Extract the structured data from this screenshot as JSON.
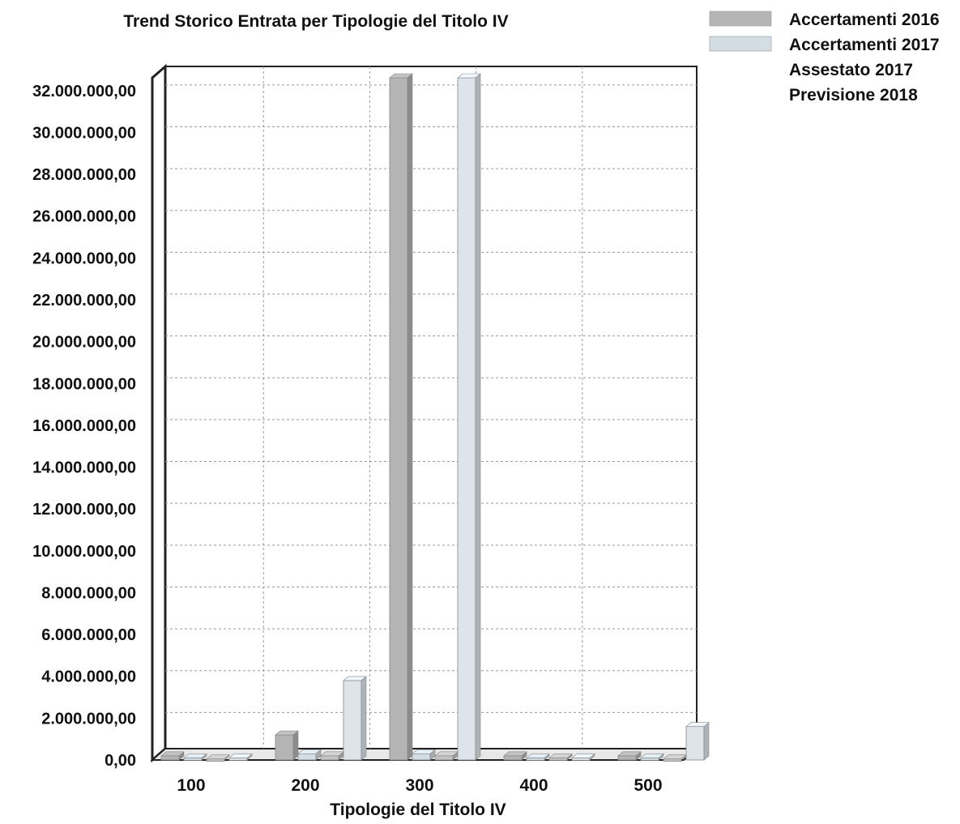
{
  "chart_data": {
    "type": "bar",
    "title": "Trend Storico Entrata per Tipologie del Titolo IV",
    "xlabel": "Tipologie del Titolo IV",
    "ylabel": "",
    "categories": [
      "100",
      "200",
      "300",
      "400",
      "500"
    ],
    "ylim": [
      0,
      33000000
    ],
    "yticks": [
      0,
      2000000,
      4000000,
      6000000,
      8000000,
      10000000,
      12000000,
      14000000,
      16000000,
      18000000,
      20000000,
      22000000,
      24000000,
      26000000,
      28000000,
      30000000,
      32000000
    ],
    "ytick_labels": [
      "0,00",
      "2.000.000,00",
      "4.000.000,00",
      "6.000.000,00",
      "8.000.000,00",
      "10.000.000,00",
      "12.000.000,00",
      "14.000.000,00",
      "16.000.000,00",
      "18.000.000,00",
      "20.000.000,00",
      "22.000.000,00",
      "24.000.000,00",
      "26.000.000,00",
      "28.000.000,00",
      "30.000.000,00",
      "32.000.000,00"
    ],
    "series": [
      {
        "name": "Accertamenti 2016",
        "color": "#b4b4b4",
        "values": [
          200000,
          1200000,
          33000000,
          200000,
          200000
        ]
      },
      {
        "name": "Accertamenti 2017",
        "color": "#d2dde4",
        "values": [
          100000,
          300000,
          300000,
          100000,
          100000
        ]
      },
      {
        "name": "Assestato 2017",
        "color": "#c4c4c4",
        "values": [
          50000,
          200000,
          200000,
          100000,
          50000
        ]
      },
      {
        "name": "Previsione 2018",
        "color": "#dde5ea",
        "values": [
          100000,
          3800000,
          33000000,
          100000,
          1600000
        ]
      }
    ],
    "grid": true,
    "legend_position": "top-right"
  }
}
